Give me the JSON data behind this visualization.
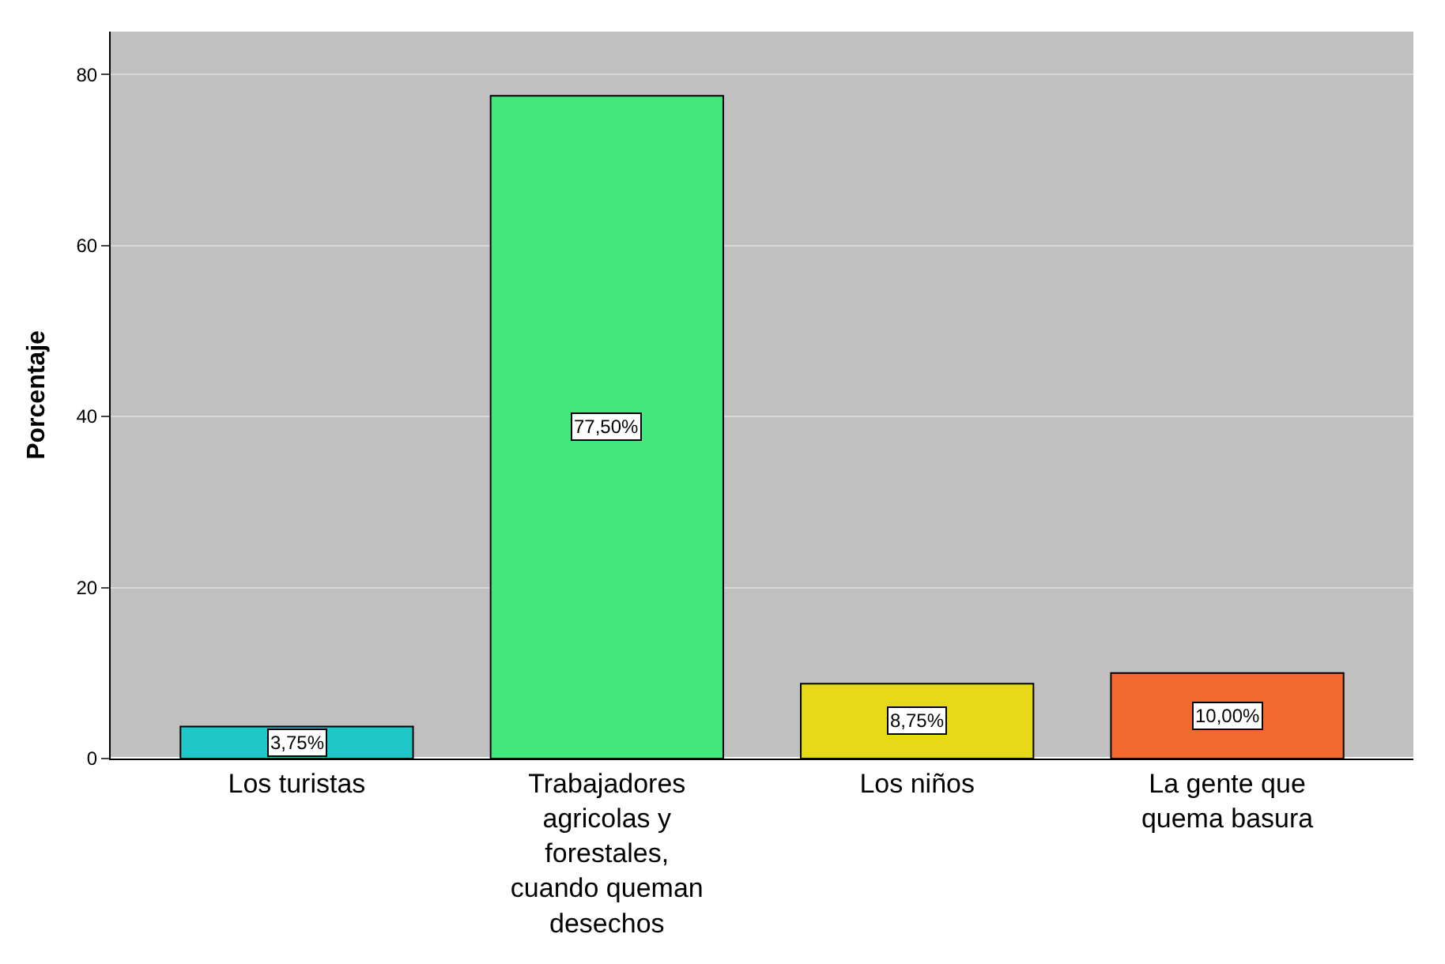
{
  "chart_data": {
    "type": "bar",
    "ylabel": "Porcentaje",
    "categories": [
      "Los turistas",
      "Trabajadores\nagricolas y\nforestales,\ncuando queman\ndesechos",
      "Los niños",
      "La gente que\nquema basura"
    ],
    "values": [
      3.75,
      77.5,
      8.75,
      10.0
    ],
    "colors": [
      "#1fc8c8",
      "#42e87c",
      "#e6d916",
      "#f26a2e"
    ],
    "value_labels": [
      "3,75%",
      "77,50%",
      "8,75%",
      "10,00%"
    ],
    "ylim": [
      0,
      85
    ],
    "yticks": [
      0,
      20,
      40,
      60,
      80
    ],
    "grid": "y"
  }
}
